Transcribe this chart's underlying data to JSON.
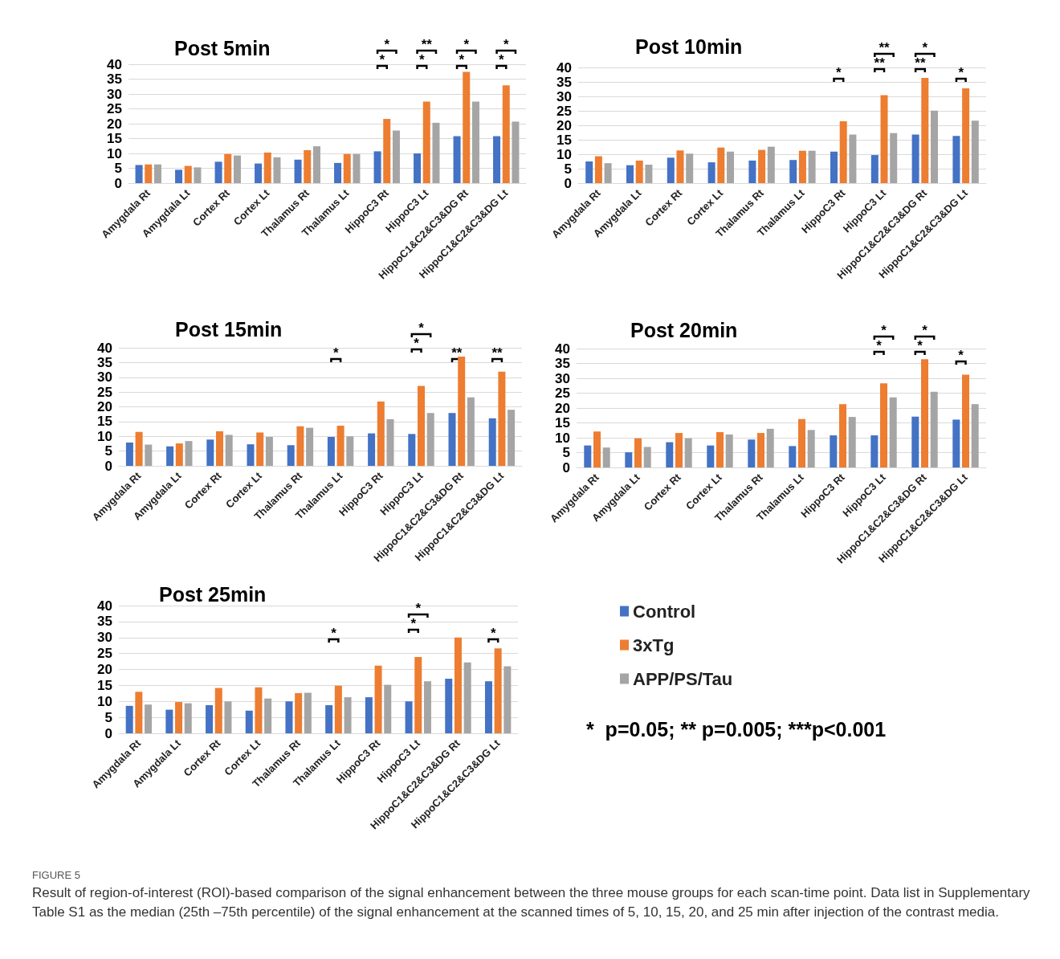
{
  "chart_data": [
    {
      "type": "bar",
      "title": "Post 5min",
      "categories": [
        "Amygdala Rt",
        "Amygdala Lt",
        "Cortex Rt",
        "Cortex Lt",
        "Thalamus Rt",
        "Thalamus Lt",
        "HippoC3 Rt",
        "HippoC3 Lt",
        "HippoC1&C2&C3&DG Rt",
        "HippoC1&C2&C3&DG Lt"
      ],
      "series": [
        {
          "color": "#4472c4",
          "values": [
            6.1,
            4.5,
            7.2,
            6.6,
            7.9,
            6.8,
            10.7,
            10.0,
            15.8,
            15.8
          ]
        },
        {
          "color": "#ed7d31",
          "values": [
            6.3,
            5.8,
            9.8,
            10.3,
            11.1,
            9.8,
            21.6,
            27.4,
            37.4,
            32.9
          ]
        },
        {
          "color": "#a5a5a5",
          "values": [
            6.3,
            5.3,
            9.3,
            8.7,
            12.4,
            9.8,
            17.7,
            20.3,
            27.4,
            20.7
          ]
        }
      ],
      "ylim": [
        0,
        40
      ],
      "yticks": [
        0,
        5,
        10,
        15,
        20,
        25,
        30,
        35,
        40
      ],
      "grid": "y",
      "legend": false,
      "annotations": [
        "*",
        "*",
        "*",
        "**",
        "*",
        "*",
        "*",
        "*"
      ]
    },
    {
      "type": "bar",
      "title": "Post 10min",
      "categories": [
        "Amygdala Rt",
        "Amygdala Lt",
        "Cortex Rt",
        "Cortex Lt",
        "Thalamus Rt",
        "Thalamus Lt",
        "HippoC3 Rt",
        "HippoC3 Lt",
        "HippoC1&C2&C3&DG Rt",
        "HippoC1&C2&C3&DG Lt"
      ],
      "series": [
        {
          "color": "#4472c4",
          "values": [
            7.5,
            6.2,
            8.8,
            7.2,
            7.8,
            8.0,
            10.9,
            9.7,
            16.8,
            16.3
          ]
        },
        {
          "color": "#ed7d31",
          "values": [
            9.3,
            7.8,
            11.3,
            12.3,
            11.5,
            11.2,
            21.4,
            30.4,
            36.4,
            32.8
          ]
        },
        {
          "color": "#a5a5a5",
          "values": [
            6.9,
            6.4,
            10.2,
            10.9,
            12.6,
            11.2,
            16.8,
            17.3,
            25.1,
            21.6
          ]
        }
      ],
      "ylim": [
        0,
        40
      ],
      "yticks": [
        0,
        5,
        10,
        15,
        20,
        25,
        30,
        35,
        40
      ],
      "grid": "y",
      "legend": false,
      "annotations": [
        "*",
        "**",
        "**",
        "**",
        "*",
        "*"
      ]
    },
    {
      "type": "bar",
      "title": "Post 15min",
      "categories": [
        "Amygdala Rt",
        "Amygdala Lt",
        "Cortex Rt",
        "Cortex Lt",
        "Thalamus Rt",
        "Thalamus Lt",
        "HippoC3 Rt",
        "HippoC3 Lt",
        "HippoC1&C2&C3&DG Rt",
        "HippoC1&C2&C3&DG Lt"
      ],
      "series": [
        {
          "color": "#4472c4",
          "values": [
            7.9,
            6.6,
            8.9,
            7.3,
            7.0,
            9.8,
            11.0,
            10.8,
            17.9,
            16.1
          ]
        },
        {
          "color": "#ed7d31",
          "values": [
            11.5,
            7.6,
            11.7,
            11.3,
            13.4,
            13.6,
            21.8,
            27.1,
            37.0,
            31.9
          ]
        },
        {
          "color": "#a5a5a5",
          "values": [
            7.2,
            8.4,
            10.5,
            9.8,
            12.9,
            10.0,
            15.8,
            17.9,
            23.2,
            19.0
          ]
        }
      ],
      "ylim": [
        0,
        40
      ],
      "yticks": [
        0,
        5,
        10,
        15,
        20,
        25,
        30,
        35,
        40
      ],
      "grid": "y",
      "legend": false,
      "annotations": [
        "*",
        "*",
        "*",
        "**",
        "**"
      ]
    },
    {
      "type": "bar",
      "title": "Post 20min",
      "categories": [
        "Amygdala Rt",
        "Amygdala Lt",
        "Cortex Rt",
        "Cortex Lt",
        "Thalamus Rt",
        "Thalamus Lt",
        "HippoC3 Rt",
        "HippoC3 Lt",
        "HippoC1&C2&C3&DG Rt",
        "HippoC1&C2&C3&DG Lt"
      ],
      "series": [
        {
          "color": "#4472c4",
          "values": [
            7.4,
            5.1,
            8.5,
            7.4,
            9.4,
            7.2,
            10.8,
            10.8,
            17.1,
            16.1
          ]
        },
        {
          "color": "#ed7d31",
          "values": [
            12.1,
            9.8,
            11.6,
            11.9,
            11.6,
            16.3,
            21.3,
            28.3,
            36.4,
            31.2
          ]
        },
        {
          "color": "#a5a5a5",
          "values": [
            6.7,
            6.9,
            9.8,
            11.1,
            13.0,
            12.6,
            17.0,
            23.6,
            25.5,
            21.3
          ]
        }
      ],
      "ylim": [
        0,
        40
      ],
      "yticks": [
        0,
        5,
        10,
        15,
        20,
        25,
        30,
        35,
        40
      ],
      "grid": "y",
      "legend": false,
      "annotations": [
        "*",
        "*",
        "*",
        "*",
        "*"
      ]
    },
    {
      "type": "bar",
      "title": "Post 25min",
      "categories": [
        "Amygdala Rt",
        "Amygdala Lt",
        "Cortex Rt",
        "Cortex Lt",
        "Thalamus Rt",
        "Thalamus Lt",
        "HippoC3 Rt",
        "HippoC3 Lt",
        "HippoC1&C2&C3&DG Rt",
        "HippoC1&C2&C3&DG Lt"
      ],
      "series": [
        {
          "name": "Control",
          "color": "#4472c4",
          "values": [
            8.6,
            7.4,
            8.8,
            7.1,
            10.0,
            8.8,
            11.3,
            10.0,
            17.1,
            16.3
          ]
        },
        {
          "name": "3xTg",
          "color": "#ed7d31",
          "values": [
            13.0,
            9.8,
            14.2,
            14.4,
            12.6,
            14.9,
            21.2,
            23.9,
            30.0,
            26.6
          ]
        },
        {
          "name": "APP/PS/Tau",
          "color": "#a5a5a5",
          "values": [
            9.0,
            9.4,
            10.0,
            10.9,
            12.7,
            11.3,
            15.2,
            16.3,
            22.2,
            21.0
          ]
        }
      ],
      "ylim": [
        0,
        40
      ],
      "yticks": [
        0,
        5,
        10,
        15,
        20,
        25,
        30,
        35,
        40
      ],
      "grid": "y",
      "legend": "right",
      "annotations": [
        "*",
        "*",
        "*",
        "*",
        "*  p=0.05; ** p=0.005; ***p<0.001",
        "FIGURE 5",
        "Result of region-of-interest (ROI)-based comparison of the signal enhancement between the three mouse groups for each scan-time point. Data list in Supplementary Table S1 as the median (25th –75th percentile) of the signal enhancement at the scanned times of 5, 10, 15, 20, and 25 min after injection of the contrast media."
      ]
    }
  ]
}
